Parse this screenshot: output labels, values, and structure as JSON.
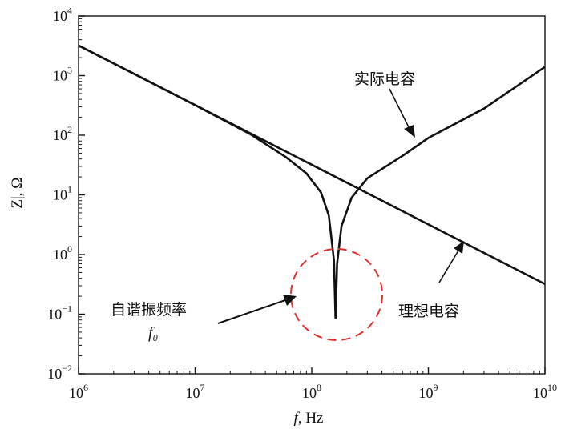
{
  "chart_data": {
    "type": "line",
    "xscale": "log",
    "yscale": "log",
    "xlim": [
      1000000.0,
      10000000000.0
    ],
    "ylim": [
      0.01,
      10000
    ],
    "xlabel_italic": "f",
    "xlabel_rest": ", Hz",
    "ylabel": "|Z|, Ω",
    "x_ticks": [
      {
        "base": "10",
        "exp": "6"
      },
      {
        "base": "10",
        "exp": "7"
      },
      {
        "base": "10",
        "exp": "8"
      },
      {
        "base": "10",
        "exp": "9"
      },
      {
        "base": "10",
        "exp": "10"
      }
    ],
    "y_ticks": [
      {
        "base": "10",
        "exp": "−2"
      },
      {
        "base": "10",
        "exp": "−1"
      },
      {
        "base": "10",
        "exp": "0"
      },
      {
        "base": "10",
        "exp": "1"
      },
      {
        "base": "10",
        "exp": "2"
      },
      {
        "base": "10",
        "exp": "3"
      },
      {
        "base": "10",
        "exp": "4"
      }
    ],
    "series": [
      {
        "name": "理想电容",
        "x": [
          1000000.0,
          10000000.0,
          100000000.0,
          1000000000.0,
          10000000000.0
        ],
        "y": [
          3200,
          320,
          32,
          3.2,
          0.32
        ]
      },
      {
        "name": "实际电容",
        "x": [
          1000000.0,
          3000000.0,
          10000000.0,
          30000000.0,
          60000000.0,
          90000000.0,
          120000000.0,
          140000000.0,
          155000000.0,
          160000000.0,
          165000000.0,
          180000000.0,
          220000000.0,
          300000000.0,
          600000000.0,
          1000000000.0,
          3000000000.0,
          10000000000.0
        ],
        "y": [
          3200,
          1070,
          320,
          103,
          43,
          23,
          11,
          4.5,
          0.8,
          0.085,
          0.7,
          3,
          9,
          19,
          45,
          90,
          280,
          1400
        ]
      }
    ],
    "annotations": {
      "real_label": "实际电容",
      "ideal_label": "理想电容",
      "resonance_label": "自谐振频率",
      "resonance_symbol": "f₀"
    },
    "grid": false,
    "legend": "none"
  }
}
